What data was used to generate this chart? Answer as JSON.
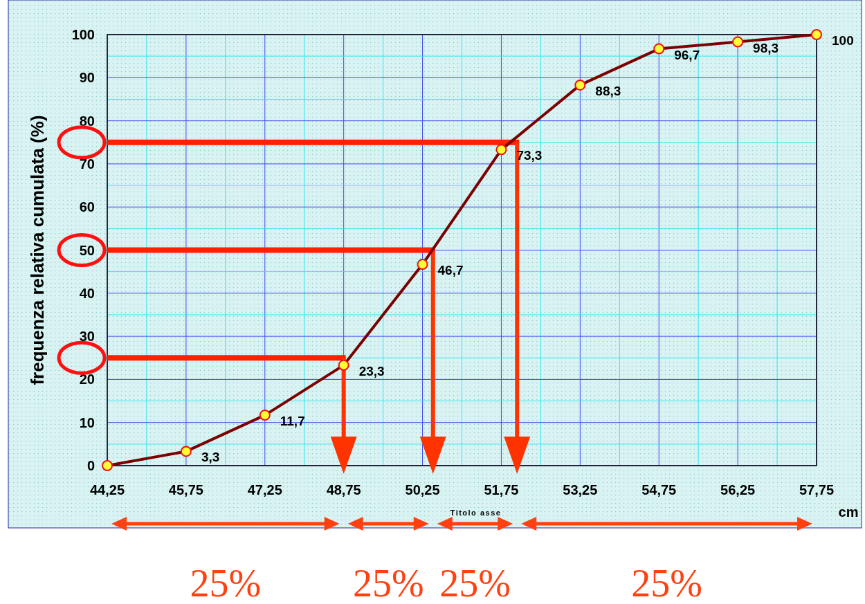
{
  "chart_data": {
    "type": "line",
    "xlabel": "Titolo asse",
    "ylabel": "frequenza relativa cumulata (%)",
    "x": [
      44.25,
      45.75,
      47.25,
      48.75,
      50.25,
      51.75,
      53.25,
      54.75,
      56.25,
      57.75
    ],
    "series": [
      {
        "color": "#7b0000",
        "values": [
          0,
          3.3,
          11.7,
          23.3,
          46.7,
          73.3,
          88.3,
          96.7,
          98.3,
          100
        ],
        "value_labels": [
          null,
          "3,3",
          "11,7",
          "23,3",
          "46,7",
          "73,3",
          "88,3",
          "96,7",
          "98,3",
          "100"
        ]
      }
    ],
    "xlim": [
      44.25,
      57.75
    ],
    "xticks": [
      {
        "value": 44.25,
        "label": "44,25"
      },
      {
        "value": 45,
        "label": null
      },
      {
        "value": 45.75,
        "label": "45,75"
      },
      {
        "value": 46.5,
        "label": null
      },
      {
        "value": 47.25,
        "label": "47,25"
      },
      {
        "value": 48,
        "label": null
      },
      {
        "value": 48.75,
        "label": "48,75"
      },
      {
        "value": 49.5,
        "label": null
      },
      {
        "value": 50.25,
        "label": "50,25"
      },
      {
        "value": 51,
        "label": null
      },
      {
        "value": 51.75,
        "label": "51,75"
      },
      {
        "value": 52.5,
        "label": null
      },
      {
        "value": 53.25,
        "label": "53,25"
      },
      {
        "value": 54,
        "label": null
      },
      {
        "value": 54.75,
        "label": "54,75"
      },
      {
        "value": 55.5,
        "label": null
      },
      {
        "value": 56.25,
        "label": "56,25"
      },
      {
        "value": 57,
        "label": null
      },
      {
        "value": 57.75,
        "label": "57,75"
      }
    ],
    "ylim": [
      0,
      100
    ],
    "yticks": [
      0,
      {
        "value": 5,
        "label": null
      },
      10,
      {
        "value": 15,
        "label": null
      },
      20,
      {
        "value": 25,
        "label": null
      },
      30,
      {
        "value": 35,
        "label": null
      },
      40,
      {
        "value": 45,
        "label": null
      },
      50,
      {
        "value": 55,
        "label": null
      },
      60,
      {
        "value": 65,
        "label": null
      },
      70,
      {
        "value": 75,
        "label": null
      },
      80,
      {
        "value": 85,
        "label": null
      },
      90,
      {
        "value": 95,
        "label": null
      },
      100
    ],
    "grid": true,
    "marker": "circle",
    "line_style": "solid",
    "ref_lines": [
      {
        "axis": "y",
        "value": 25,
        "color": "#ff2000"
      },
      {
        "axis": "y",
        "value": 50,
        "color": "#ff2000"
      },
      {
        "axis": "y",
        "value": 75,
        "color": "#ff2000"
      },
      {
        "axis": "x",
        "value": 48.75,
        "color": "#ff3300"
      },
      {
        "axis": "x",
        "value": 50.45,
        "color": "#ff3300"
      },
      {
        "axis": "x",
        "value": 52.05,
        "color": "#ff3300"
      }
    ],
    "annotations": [
      "cm",
      "25%",
      "25%",
      "25%",
      "25%"
    ]
  }
}
